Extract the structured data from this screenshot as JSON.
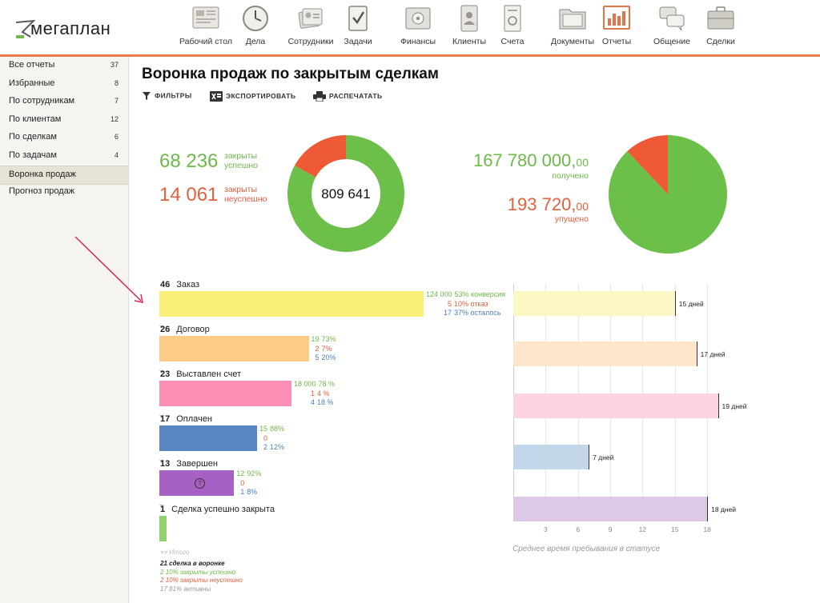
{
  "app": {
    "logo": "мегаплан"
  },
  "nav": [
    {
      "label": "Рабочий стол",
      "icon": "desktop-icon"
    },
    {
      "label": "Дела",
      "icon": "clock-icon"
    },
    {
      "label": "Сотрудники",
      "icon": "employees-icon"
    },
    {
      "label": "Задачи",
      "icon": "tasks-icon"
    },
    {
      "label": "Финансы",
      "icon": "safe-icon"
    },
    {
      "label": "Клиенты",
      "icon": "clients-icon"
    },
    {
      "label": "Счета",
      "icon": "invoice-icon"
    },
    {
      "label": "Документы",
      "icon": "documents-icon"
    },
    {
      "label": "Отчеты",
      "icon": "reports-icon"
    },
    {
      "label": "Общение",
      "icon": "chat-icon"
    },
    {
      "label": "Сделки",
      "icon": "briefcase-icon"
    }
  ],
  "sidebar": {
    "items": [
      {
        "label": "Все отчеты",
        "count": "37"
      },
      {
        "label": "Избранные",
        "count": "8"
      },
      {
        "label": "По сотрудникам",
        "count": "7"
      },
      {
        "label": "По клиентам",
        "count": "12"
      },
      {
        "label": "По сделкам",
        "count": "6"
      },
      {
        "label": "По задачам",
        "count": "4"
      },
      {
        "label": "Воронка продаж",
        "count": ""
      },
      {
        "label": "Прогноз продаж",
        "count": ""
      }
    ],
    "active_index": 6
  },
  "page": {
    "title": "Воронка продаж по закрытым сделкам",
    "tools": {
      "filters": "ФИЛЬТРЫ",
      "export": "ЭКСПОРТИРОВАТЬ",
      "print": "РАСПЕЧАТАТЬ"
    }
  },
  "stats": {
    "won_count": "68 236",
    "won_label_1": "закрыты",
    "won_label_2": "успешно",
    "lost_count": "14 061",
    "lost_label_1": "закрыты",
    "lost_label_2": "неуспешно",
    "donut_center": "809 641",
    "received_int": "167 780 000,",
    "received_dec": "00",
    "received_label": "получено",
    "missed_int": "193 720,",
    "missed_dec": "00",
    "missed_label": "упущено",
    "colors": {
      "green": "#6dba4a",
      "red": "#e5603e"
    }
  },
  "donut": {
    "segments": [
      {
        "name": "закрыты успешно",
        "value": 68236,
        "color": "#6cc04a"
      },
      {
        "name": "закрыты неуспешно",
        "value": 14061,
        "color": "#ee5a36"
      }
    ]
  },
  "pie": {
    "segments": [
      {
        "name": "получено",
        "value": 0.88,
        "color": "#6cc04a"
      },
      {
        "name": "упущено",
        "value": 0.12,
        "color": "#ee5a36"
      }
    ]
  },
  "funnel": {
    "stages": [
      {
        "count": "46",
        "name": "Заказ",
        "color": "#fbf07a",
        "green": "124 000",
        "green_pct": "53% конверсия",
        "red": "5",
        "red_pct": "10% отказ",
        "blue": "17",
        "blue_pct": "37% осталось"
      },
      {
        "count": "26",
        "name": "Договор",
        "color": "#fdcb87",
        "green": "19",
        "green_pct": "73%",
        "red": "2",
        "red_pct": "7%",
        "blue": "5",
        "blue_pct": "20%"
      },
      {
        "count": "23",
        "name": "Выставлен счет",
        "color": "#fd8fb6",
        "green": "18 000",
        "green_pct": "78 %",
        "red": "1",
        "red_pct": "4 %",
        "blue": "4",
        "blue_pct": "18 %"
      },
      {
        "count": "17",
        "name": "Оплачен",
        "color": "#5886c0",
        "green": "15",
        "green_pct": "88%",
        "red": "0",
        "red_pct": "",
        "blue": "2",
        "blue_pct": "12%"
      },
      {
        "count": "13",
        "name": "Завершен",
        "color": "#a761c4",
        "green": "12",
        "green_pct": "92%",
        "red": "0",
        "red_pct": "",
        "blue": "1",
        "blue_pct": "8%"
      },
      {
        "count": "1",
        "name": "Сделка успешно закрыта",
        "color": "#8fd36b"
      }
    ],
    "total_label": "Итого",
    "summary": [
      {
        "num": "21",
        "text": "сделка в воронке",
        "style": "bold"
      },
      {
        "num": "2",
        "text": "10% закрыты успешно",
        "style": "green"
      },
      {
        "num": "2",
        "text": "10% закрыты неуспешно",
        "style": "red"
      },
      {
        "num": "17",
        "text": "81% активны",
        "style": "gray"
      }
    ]
  },
  "chart_data": {
    "type": "bar",
    "orientation": "horizontal",
    "title": "",
    "xlabel": "Среднее время пребывания в статусе",
    "categories": [
      "Заказ",
      "Договор",
      "Выставлен счет",
      "Оплачен",
      "Завершен"
    ],
    "values": [
      15,
      17,
      19,
      7,
      18
    ],
    "value_labels": [
      "15 дней",
      "17 дней",
      "19 дней",
      "7 дней",
      "18 дней"
    ],
    "colors": [
      "#fdf7c4",
      "#fde6cc",
      "#fcd3e1",
      "#c4d6ea",
      "#ddc9e6"
    ],
    "xticks": [
      3,
      6,
      9,
      12,
      15,
      18
    ],
    "xlim": [
      0,
      20
    ],
    "grid": true
  }
}
